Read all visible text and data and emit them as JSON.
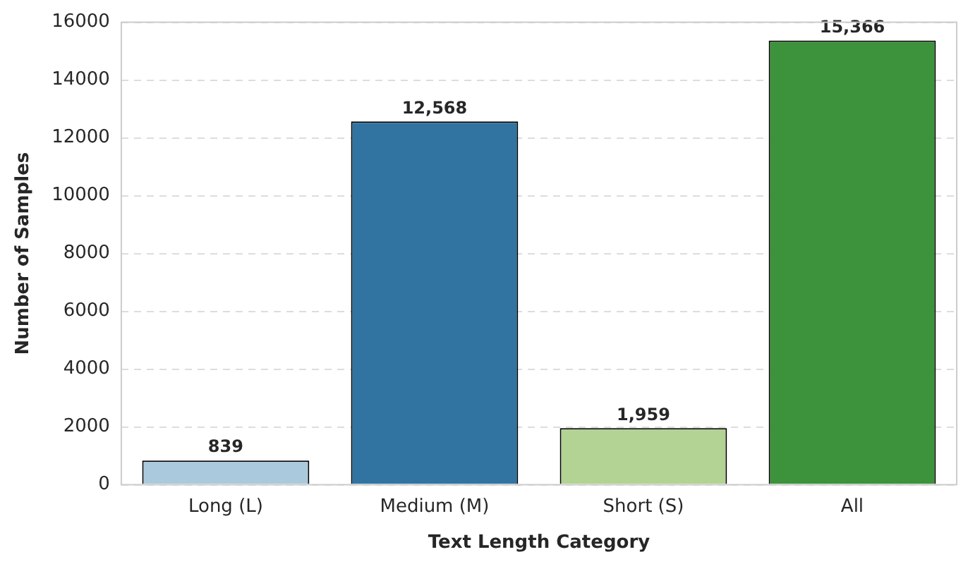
{
  "chart_data": {
    "type": "bar",
    "xlabel": "Text Length Category",
    "ylabel": "Number of Samples",
    "categories": [
      "Long (L)",
      "Medium (M)",
      "Short (S)",
      "All"
    ],
    "values": [
      839,
      12568,
      1959,
      15366
    ],
    "colors": [
      "#abc9dc",
      "#3274a1",
      "#b2d393",
      "#3d923c"
    ],
    "value_labels": [
      "839",
      "12,568",
      "1,959",
      "15,366"
    ],
    "ylim": [
      0,
      16000
    ],
    "yticks": [
      0,
      2000,
      4000,
      6000,
      8000,
      10000,
      12000,
      14000,
      16000
    ],
    "grid": "y",
    "legend": false
  }
}
